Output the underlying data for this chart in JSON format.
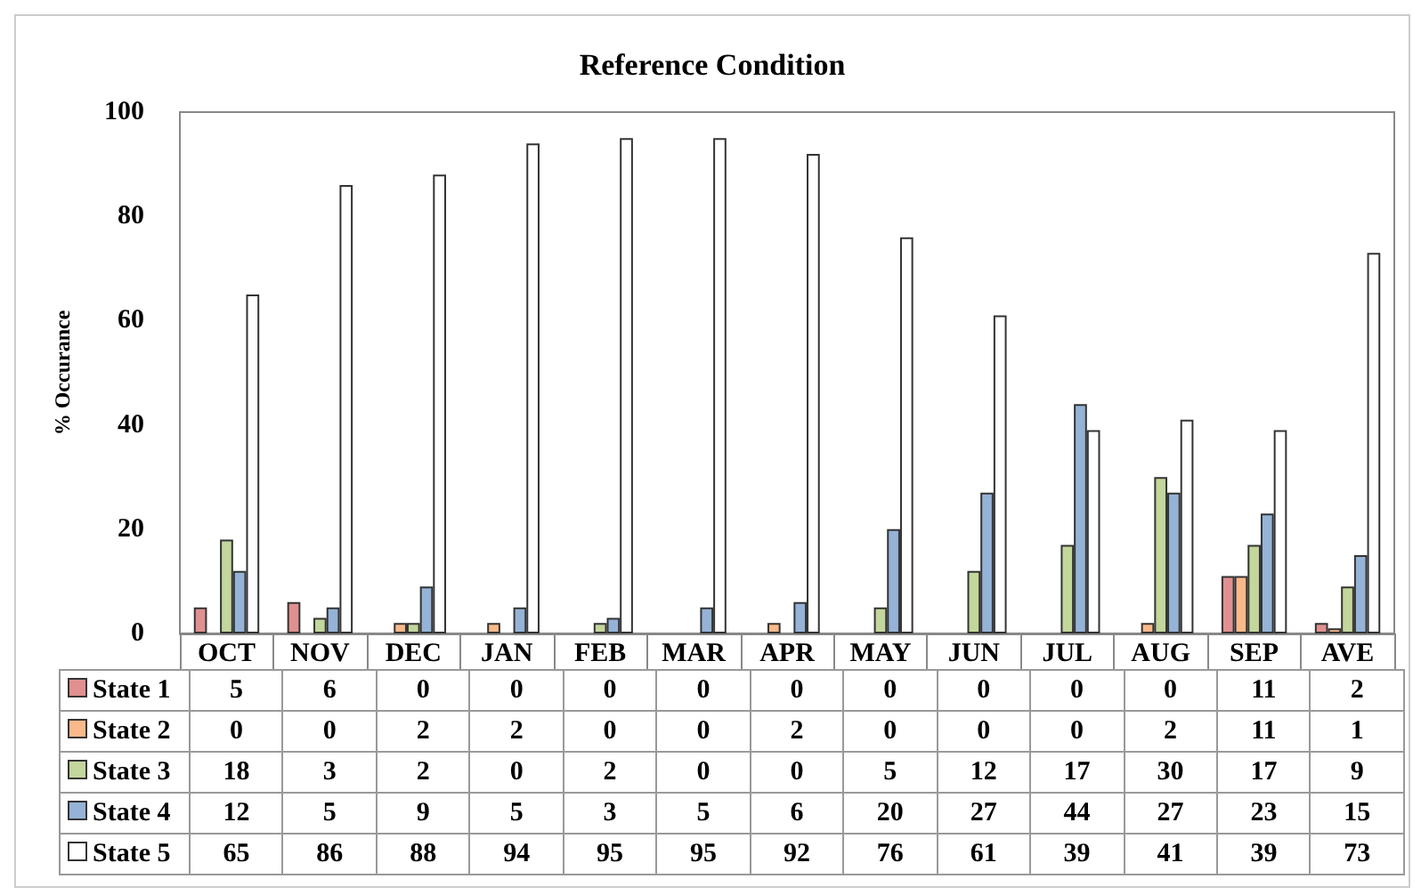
{
  "chart_data": {
    "type": "bar",
    "title": "Reference Condition",
    "ylabel": "% Occurance",
    "categories": [
      "OCT",
      "NOV",
      "DEC",
      "JAN",
      "FEB",
      "MAR",
      "APR",
      "MAY",
      "JUN",
      "JUL",
      "AUG",
      "SEP",
      "AVE"
    ],
    "series": [
      {
        "name": "State 1",
        "color": "#e09090",
        "values": [
          5,
          6,
          0,
          0,
          0,
          0,
          0,
          0,
          0,
          0,
          0,
          11,
          2
        ]
      },
      {
        "name": "State 2",
        "color": "#f9b98a",
        "values": [
          0,
          0,
          2,
          2,
          0,
          0,
          2,
          0,
          0,
          0,
          2,
          11,
          1
        ]
      },
      {
        "name": "State 3",
        "color": "#c3d69b",
        "values": [
          18,
          3,
          2,
          0,
          2,
          0,
          0,
          5,
          12,
          17,
          30,
          17,
          9
        ]
      },
      {
        "name": "State 4",
        "color": "#95b3d7",
        "values": [
          12,
          5,
          9,
          5,
          3,
          5,
          6,
          20,
          27,
          44,
          27,
          23,
          15
        ]
      },
      {
        "name": "State 5",
        "color": "#ffffff",
        "values": [
          65,
          86,
          88,
          94,
          95,
          95,
          92,
          76,
          61,
          39,
          41,
          39,
          73
        ]
      }
    ],
    "ylim": [
      0,
      100
    ],
    "yticks": [
      0,
      20,
      40,
      60,
      80,
      100
    ],
    "grid": false,
    "legend": "bottom",
    "data_labels": true
  }
}
